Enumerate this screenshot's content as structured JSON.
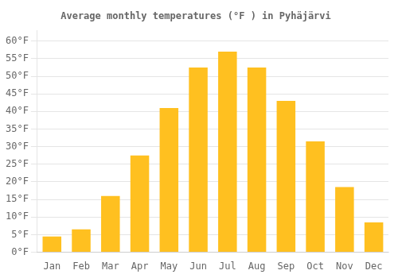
{
  "chart_data": {
    "type": "bar",
    "title": "Average monthly temperatures (°F ) in Pyhäjärvi",
    "categories": [
      "Jan",
      "Feb",
      "Mar",
      "Apr",
      "May",
      "Jun",
      "Jul",
      "Aug",
      "Sep",
      "Oct",
      "Nov",
      "Dec"
    ],
    "values": [
      4.5,
      6.5,
      16.0,
      27.5,
      41.0,
      52.5,
      57.0,
      52.5,
      43.0,
      31.5,
      18.5,
      8.5
    ],
    "color": "#FFC020",
    "ylim": [
      0,
      63
    ],
    "yticks": [
      {
        "value": 0,
        "label": "0°F"
      },
      {
        "value": 5,
        "label": "5°F"
      },
      {
        "value": 10,
        "label": "10°F"
      },
      {
        "value": 15,
        "label": "15°F"
      },
      {
        "value": 20,
        "label": "20°F"
      },
      {
        "value": 25,
        "label": "25°F"
      },
      {
        "value": 30,
        "label": "30°F"
      },
      {
        "value": 35,
        "label": "35°F"
      },
      {
        "value": 40,
        "label": "40°F"
      },
      {
        "value": 45,
        "label": "45°F"
      },
      {
        "value": 50,
        "label": "50°F"
      },
      {
        "value": 55,
        "label": "55°F"
      },
      {
        "value": 60,
        "label": "60°F"
      }
    ],
    "grid": true
  }
}
